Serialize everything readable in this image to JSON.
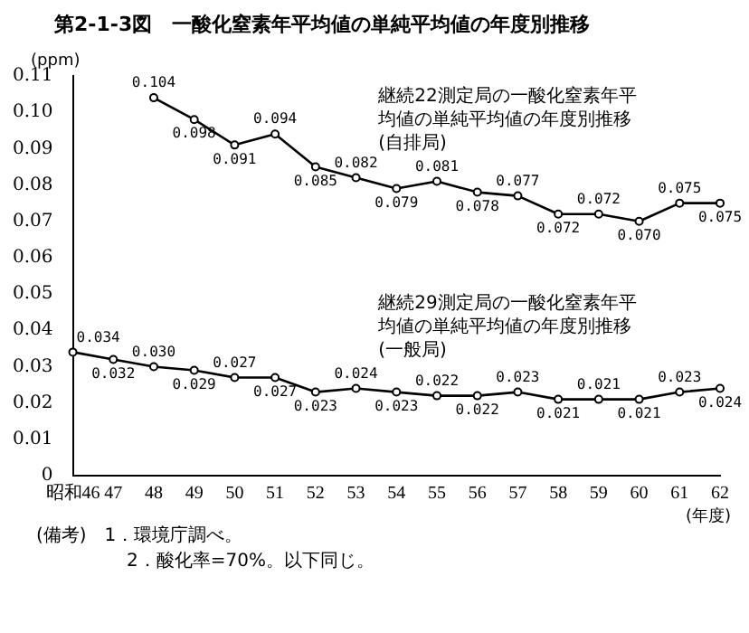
{
  "chart_data": {
    "type": "line",
    "title": "第2-1-3図　一酸化窒素年平均値の単純平均値の年度別推移",
    "ylabel": "(ppm)",
    "xlabel": "(年度)",
    "categories": [
      "昭和46",
      "47",
      "48",
      "49",
      "50",
      "51",
      "52",
      "53",
      "54",
      "55",
      "56",
      "57",
      "58",
      "59",
      "60",
      "61",
      "62"
    ],
    "series": [
      {
        "name": "継続22測定局の一酸化窒素年平均値の単純平均値の年度別推移(自排局)",
        "color": "#000000",
        "values": [
          null,
          null,
          0.104,
          0.098,
          0.091,
          0.094,
          0.085,
          0.082,
          0.079,
          0.081,
          0.078,
          0.077,
          0.072,
          0.072,
          0.07,
          0.075,
          0.075
        ],
        "value_labels": [
          null,
          null,
          "0.104",
          "0.098",
          "0.091",
          "0.094",
          "0.085",
          "0.082",
          "0.079",
          "0.081",
          "0.078",
          "0.077",
          "0.072",
          "0.072",
          "0.070",
          "0.075",
          "0.075"
        ]
      },
      {
        "name": "継続29測定局の一酸化窒素年平均値の単純平均値の年度別推移(一般局)",
        "color": "#000000",
        "values": [
          0.034,
          0.032,
          0.03,
          0.029,
          0.027,
          0.027,
          0.023,
          0.024,
          0.023,
          0.022,
          0.022,
          0.023,
          0.021,
          0.021,
          0.021,
          0.023,
          0.024
        ],
        "value_labels": [
          "0.034",
          "0.032",
          "0.030",
          "0.029",
          "0.027",
          "0.027",
          "0.023",
          "0.024",
          "0.023",
          "0.022",
          "0.022",
          "0.023",
          "0.021",
          "0.021",
          "0.021",
          "0.023",
          "0.024"
        ]
      }
    ],
    "ylim": [
      0,
      0.11
    ],
    "yticks": [
      0,
      0.01,
      0.02,
      0.03,
      0.04,
      0.05,
      0.06,
      0.07,
      0.08,
      0.09,
      {
        "value": 0.1,
        "label": "0.10"
      },
      0.11
    ],
    "grid": false,
    "legend": false,
    "marker": "circle",
    "line_style": "solid",
    "annotations": [
      "(備考)　1．環境庁調べ。",
      "2．酸化率=70%。以下同じ。"
    ]
  }
}
